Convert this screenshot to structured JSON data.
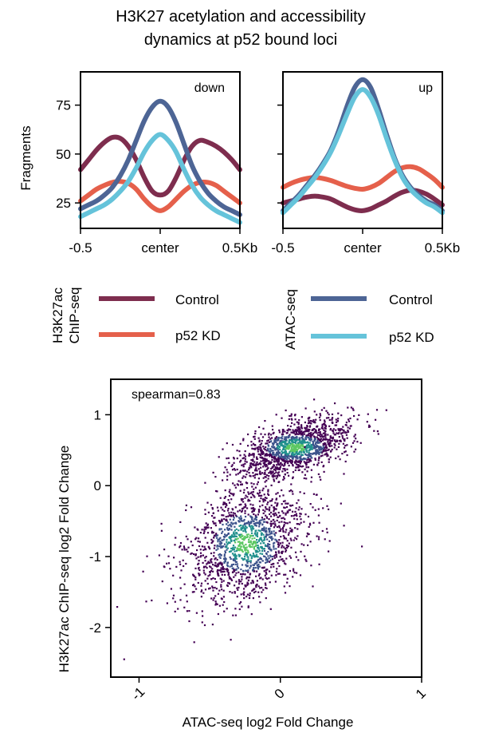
{
  "figure": {
    "title_line1": "H3K27 acetylation and accessibility",
    "title_line2": "dynamics at p52 bound loci"
  },
  "colors": {
    "h3k27ac_control": "#7e2d4e",
    "h3k27ac_kd": "#e5604b",
    "atac_control": "#4d6595",
    "atac_kd": "#65c3da",
    "scatter_low": "#440154",
    "scatter_mid": "#3b528b",
    "scatter_high": "#21908d",
    "scatter_top": "#5dc863"
  },
  "legends": {
    "h3k27ac": {
      "title_line1": "H3K27ac",
      "title_line2": "ChIP-seq",
      "items": [
        "Control",
        "p52 KD"
      ]
    },
    "atac": {
      "title": "ATAC-seq",
      "items": [
        "Control",
        "p52 KD"
      ]
    }
  },
  "chart_data": [
    {
      "type": "line",
      "panel": "down",
      "annotation": "down",
      "ylabel": "Fragments",
      "xlim": [
        -0.5,
        0.5
      ],
      "ylim": [
        12,
        92
      ],
      "xticks": [
        -0.5,
        0,
        0.5
      ],
      "xtick_labels": [
        "-0.5",
        "center",
        "0.5Kb"
      ],
      "yticks": [
        25,
        50,
        75
      ],
      "ytick_labels": [
        "25",
        "50",
        "75"
      ],
      "x": [
        -0.5,
        -0.45,
        -0.4,
        -0.35,
        -0.3,
        -0.25,
        -0.2,
        -0.15,
        -0.1,
        -0.05,
        0,
        0.05,
        0.1,
        0.15,
        0.2,
        0.25,
        0.3,
        0.35,
        0.4,
        0.45,
        0.5
      ],
      "series": [
        {
          "name": "H3K27ac Control",
          "color_key": "h3k27ac_control",
          "values": [
            42,
            47,
            52,
            56,
            58.5,
            58,
            54,
            47,
            38,
            31,
            29,
            31,
            38,
            47,
            54,
            57,
            56,
            54,
            51,
            47,
            42
          ]
        },
        {
          "name": "H3K27ac p52 KD",
          "color_key": "h3k27ac_kd",
          "values": [
            26,
            29,
            32,
            34,
            35.5,
            36,
            35,
            32,
            27,
            23,
            21,
            23,
            27,
            31,
            34,
            35.5,
            35.5,
            34,
            31,
            28,
            25
          ]
        },
        {
          "name": "ATAC Control",
          "color_key": "atac_control",
          "values": [
            22,
            24,
            26,
            29,
            33,
            39,
            47,
            57,
            67,
            74,
            77,
            74,
            66,
            55,
            44,
            36,
            30,
            26,
            23,
            21,
            19
          ]
        },
        {
          "name": "ATAC p52 KD",
          "color_key": "atac_kd",
          "values": [
            18,
            20,
            22,
            24,
            27,
            31,
            36,
            43,
            51,
            57,
            60,
            57,
            51,
            42,
            34,
            28,
            24,
            21,
            19,
            17,
            15
          ]
        }
      ]
    },
    {
      "type": "line",
      "panel": "up",
      "annotation": "up",
      "ylabel": "",
      "xlim": [
        -0.5,
        0.5
      ],
      "ylim": [
        12,
        92
      ],
      "xticks": [
        -0.5,
        0,
        0.5
      ],
      "xtick_labels": [
        "-0.5",
        "center",
        "0.5Kb"
      ],
      "yticks": [
        25,
        50,
        75
      ],
      "ytick_labels": [
        "",
        "",
        ""
      ],
      "x": [
        -0.5,
        -0.45,
        -0.4,
        -0.35,
        -0.3,
        -0.25,
        -0.2,
        -0.15,
        -0.1,
        -0.05,
        0,
        0.05,
        0.1,
        0.15,
        0.2,
        0.25,
        0.3,
        0.35,
        0.4,
        0.45,
        0.5
      ],
      "series": [
        {
          "name": "H3K27ac Control",
          "color_key": "h3k27ac_control",
          "values": [
            25,
            26,
            27,
            28,
            28.5,
            28,
            27,
            25,
            23,
            21.5,
            21,
            22,
            24,
            26,
            28.5,
            30.5,
            31.5,
            31,
            29.5,
            27,
            24
          ]
        },
        {
          "name": "H3K27ac p52 KD",
          "color_key": "h3k27ac_kd",
          "values": [
            33,
            35,
            36.5,
            37.5,
            38,
            37.5,
            36.5,
            35,
            33.5,
            32.5,
            32,
            33,
            35,
            38,
            41,
            43,
            43.5,
            42.5,
            40,
            37,
            33
          ]
        },
        {
          "name": "ATAC Control",
          "color_key": "atac_control",
          "values": [
            21,
            25,
            29,
            34,
            39,
            45,
            52,
            62,
            74,
            84,
            88,
            84,
            73,
            60,
            48,
            39,
            33,
            29,
            26,
            24,
            21
          ]
        },
        {
          "name": "ATAC p52 KD",
          "color_key": "atac_kd",
          "values": [
            20,
            24,
            28,
            33,
            38,
            44,
            51,
            60,
            70,
            79,
            83,
            79,
            70,
            58,
            47,
            38,
            32,
            28,
            25,
            23,
            20
          ]
        }
      ]
    },
    {
      "type": "scatter",
      "panel": "correlation",
      "annotation": "spearman=0.83",
      "xlabel": "ATAC-seq log2 Fold Change",
      "ylabel": "H3K27ac ChIP-seq log2 Fold Change",
      "xlim": [
        -1.2,
        1.0
      ],
      "ylim": [
        -2.7,
        1.5
      ],
      "xticks": [
        -1,
        0,
        1
      ],
      "xtick_labels": [
        "-1",
        "0",
        "1"
      ],
      "yticks": [
        -2,
        -1,
        0,
        1
      ],
      "ytick_labels": [
        "-2",
        "-1",
        "0",
        "1"
      ],
      "clusters": [
        {
          "name": "up",
          "center": [
            0.1,
            0.55
          ],
          "spread": [
            0.2,
            0.18
          ],
          "count": 1400
        },
        {
          "name": "down",
          "center": [
            -0.25,
            -0.8
          ],
          "spread": [
            0.22,
            0.4
          ],
          "count": 1500
        }
      ]
    }
  ]
}
